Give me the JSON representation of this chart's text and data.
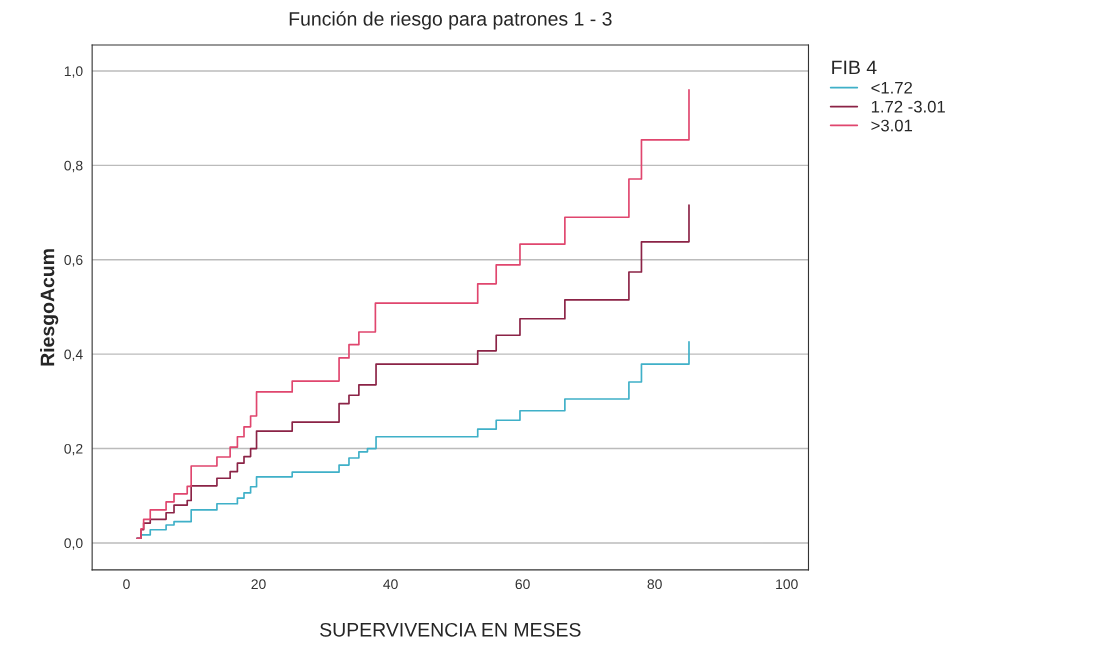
{
  "chart_data": {
    "type": "step",
    "title": "Función de riesgo para patrones 1 - 3",
    "xlabel": "SUPERVIVENCIA EN MESES",
    "ylabel": "RiesgoAcum",
    "legend_title": "FIB 4",
    "legend": "top right",
    "grid": "y",
    "marker": "none",
    "line_style": "solid",
    "xlim": [
      -5.2,
      103.3
    ],
    "ylim": [
      -0.057,
      1.055
    ],
    "xticks": [
      0,
      20,
      40,
      60,
      80,
      100
    ],
    "yticks": [
      {
        "value": 0,
        "label": "0,0"
      },
      {
        "value": 0.2,
        "label": "0,2"
      },
      {
        "value": 0.4,
        "label": "0,4"
      },
      {
        "value": 0.6,
        "label": "0,6"
      },
      {
        "value": 0.8,
        "label": "0,8"
      },
      {
        "value": 1.0,
        "label": "1,0"
      }
    ],
    "series": [
      {
        "name": "<1.72",
        "color": "#3fb0c8",
        "x": [
          1.6,
          2.2,
          3.6,
          6.0,
          7.2,
          9.8,
          13.7,
          16.8,
          17.8,
          18.8,
          19.7,
          25.1,
          32.2,
          33.7,
          35.2,
          36.5,
          37.8,
          53.2,
          56.0,
          59.6,
          66.4,
          76.1,
          78.0,
          85.2,
          85.2
        ],
        "values": [
          0.01,
          0.017,
          0.028,
          0.038,
          0.045,
          0.07,
          0.083,
          0.095,
          0.106,
          0.119,
          0.14,
          0.15,
          0.165,
          0.18,
          0.193,
          0.2,
          0.225,
          0.241,
          0.26,
          0.28,
          0.305,
          0.341,
          0.379,
          0.379,
          0.426
        ]
      },
      {
        "name": "1.72 -3.01",
        "color": "#8b2346",
        "x": [
          1.6,
          2.2,
          2.6,
          3.6,
          6.0,
          7.2,
          9.2,
          9.8,
          13.7,
          15.7,
          16.8,
          17.8,
          18.8,
          19.7,
          25.1,
          32.2,
          33.7,
          35.2,
          37.8,
          53.2,
          56.0,
          59.6,
          66.4,
          76.1,
          78.0,
          85.2,
          85.2
        ],
        "values": [
          0.01,
          0.028,
          0.042,
          0.05,
          0.064,
          0.08,
          0.09,
          0.121,
          0.137,
          0.151,
          0.169,
          0.183,
          0.2,
          0.237,
          0.256,
          0.295,
          0.313,
          0.335,
          0.379,
          0.407,
          0.44,
          0.475,
          0.515,
          0.574,
          0.638,
          0.638,
          0.716
        ]
      },
      {
        "name": ">3.01",
        "color": "#e0466e",
        "x": [
          1.6,
          2.2,
          2.6,
          3.6,
          6.0,
          7.2,
          9.2,
          9.8,
          13.7,
          15.7,
          16.8,
          17.8,
          18.8,
          19.7,
          25.1,
          32.2,
          33.7,
          35.2,
          37.7,
          53.2,
          56.0,
          59.6,
          66.4,
          76.1,
          78.0,
          85.2,
          85.2
        ],
        "values": [
          0.01,
          0.03,
          0.05,
          0.07,
          0.087,
          0.104,
          0.12,
          0.163,
          0.182,
          0.203,
          0.225,
          0.246,
          0.269,
          0.32,
          0.343,
          0.392,
          0.42,
          0.447,
          0.508,
          0.549,
          0.589,
          0.633,
          0.69,
          0.771,
          0.854,
          0.854,
          0.96
        ]
      }
    ]
  }
}
